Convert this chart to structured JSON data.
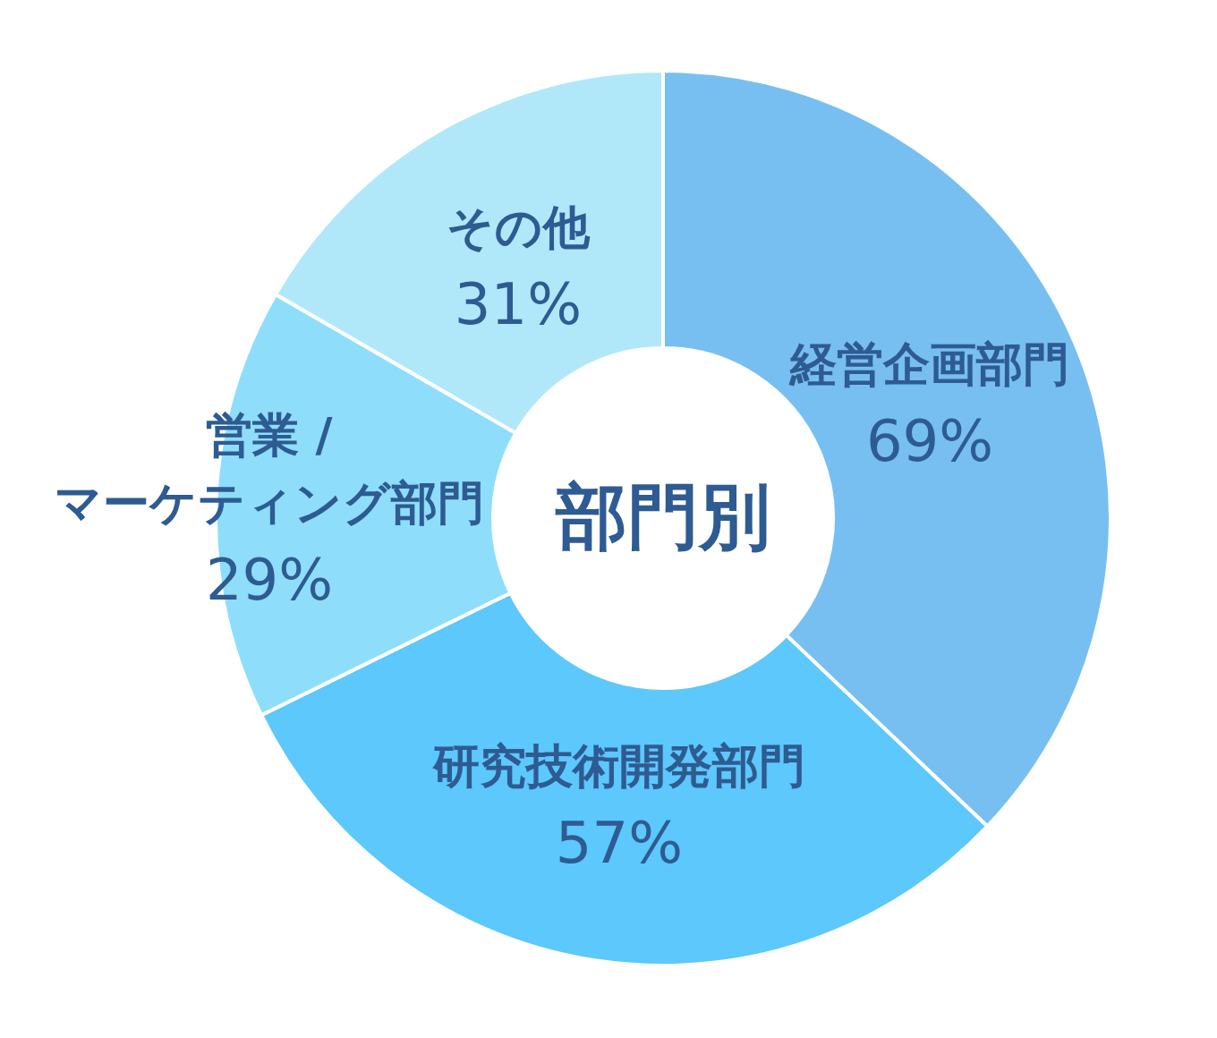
{
  "chart_data": {
    "type": "donut",
    "title": "部門別",
    "categories": [
      "経営企画部門",
      "研究技術開発部門",
      "営業 / マーケティング部門",
      "その他"
    ],
    "values": [
      69,
      57,
      29,
      31
    ],
    "colors": [
      "#77bff0",
      "#5cc8fb",
      "#8edefb",
      "#b1e8f9"
    ],
    "value_labels": [
      "69%",
      "57%",
      "29%",
      "31%"
    ]
  }
}
